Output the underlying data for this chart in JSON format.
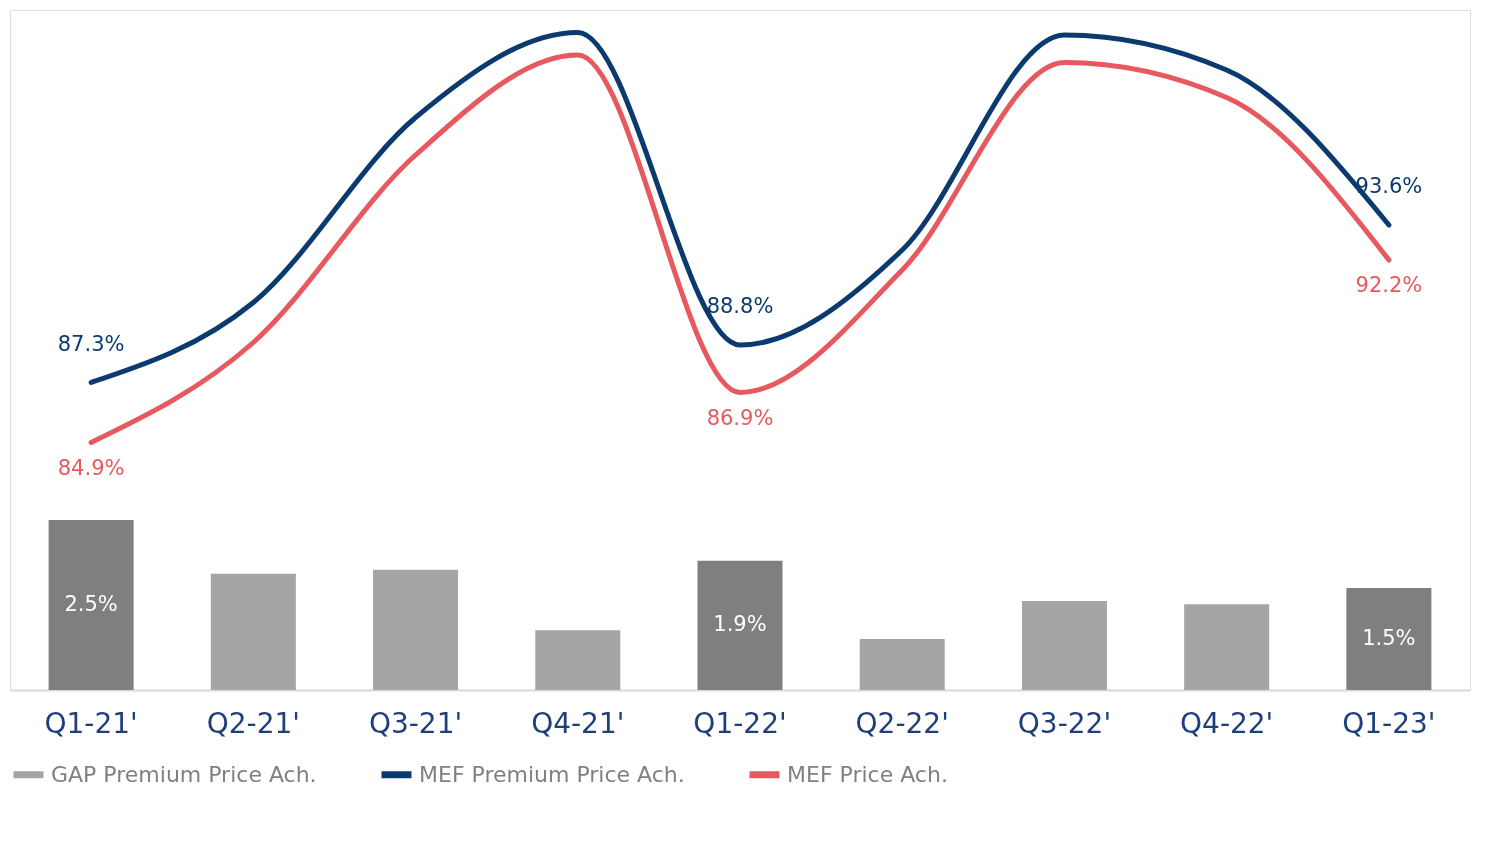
{
  "chart_data": {
    "type": "bar",
    "categories": [
      "Q1-21'",
      "Q2-21'",
      "Q3-21'",
      "Q4-21'",
      "Q1-22'",
      "Q2-22'",
      "Q3-22'",
      "Q4-22'",
      "Q1-23'"
    ],
    "series": [
      {
        "name": "GAP Premium Price Ach.",
        "color": "#a5a5a5",
        "colors": [
          "#7f7f7f",
          "#a5a5a5",
          "#a5a5a5",
          "#a5a5a5",
          "#7f7f7f",
          "#a5a5a5",
          "#a5a5a5",
          "#a5a5a5",
          "#7f7f7f"
        ],
        "values": [
          2.5,
          1.71,
          1.77,
          0.88,
          1.9,
          0.75,
          1.31,
          1.26,
          1.5
        ],
        "value_labels": [
          "2.5%",
          null,
          null,
          null,
          "1.9%",
          null,
          null,
          null,
          "1.5%"
        ]
      },
      {
        "name": "MEF Premium Price Ach.",
        "type": "line",
        "axis": "y2",
        "color": "#0b3a6e",
        "values": [
          87.3,
          90.5,
          97.9,
          101.3,
          88.8,
          92.6,
          101.2,
          99.8,
          93.6
        ],
        "value_labels": [
          "87.3%",
          null,
          null,
          null,
          "88.8%",
          null,
          null,
          null,
          "93.6%"
        ]
      },
      {
        "name": "MEF  Price Ach.",
        "type": "line",
        "axis": "y2",
        "color": "#e8595f",
        "values": [
          84.9,
          88.9,
          96.4,
          100.4,
          86.9,
          91.8,
          100.1,
          98.7,
          92.2
        ],
        "value_labels": [
          "84.9%",
          null,
          null,
          null,
          "86.9%",
          null,
          null,
          null,
          "92.2%"
        ]
      }
    ],
    "ylim": [
      0,
      10
    ],
    "y2lim": [
      75,
      102.2
    ],
    "tick_labels": "x",
    "grid": false,
    "legend": "bottom",
    "line_style": "solid",
    "marker": "none"
  }
}
